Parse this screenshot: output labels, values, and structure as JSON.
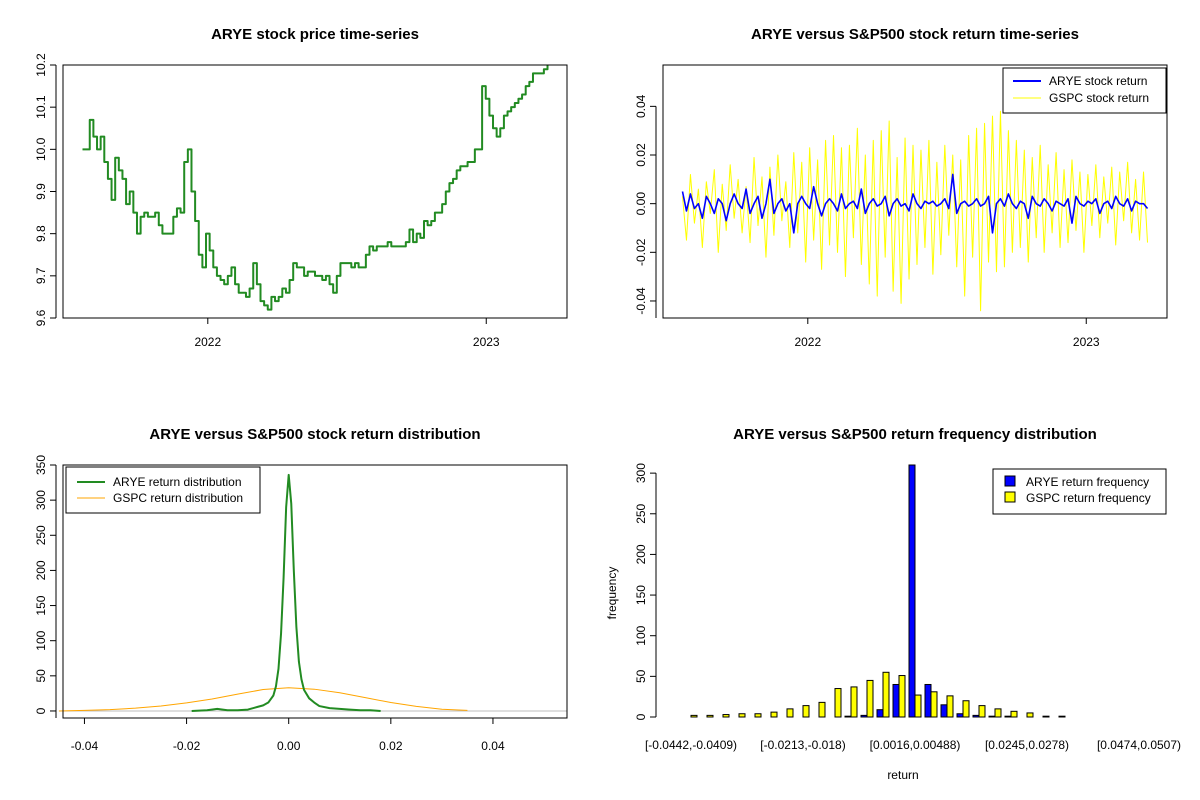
{
  "chart_data": [
    {
      "id": "price",
      "type": "line",
      "title": "ARYE stock price time-series",
      "xlabel": "",
      "ylabel": "",
      "x_domain": [
        2021.55,
        2023.22
      ],
      "xlim": [
        2021.48,
        2023.29
      ],
      "ylim": [
        9.6,
        10.2
      ],
      "x_ticks": [
        {
          "value": 2022,
          "label": "2022"
        },
        {
          "value": 2023,
          "label": "2023"
        }
      ],
      "y_ticks": [
        {
          "value": 9.6,
          "label": "9.6"
        },
        {
          "value": 9.7,
          "label": "9.7"
        },
        {
          "value": 9.8,
          "label": "9.8"
        },
        {
          "value": 9.9,
          "label": "9.9"
        },
        {
          "value": 10.0,
          "label": "10.0"
        },
        {
          "value": 10.1,
          "label": "10.1"
        },
        {
          "value": 10.2,
          "label": "10.2"
        }
      ],
      "series": [
        {
          "name": "ARYE",
          "color": "#228B22",
          "values": [
            10.0,
            10.0,
            10.07,
            10.03,
            10.0,
            10.03,
            9.97,
            9.93,
            9.88,
            9.98,
            9.95,
            9.93,
            9.87,
            9.9,
            9.85,
            9.8,
            9.84,
            9.85,
            9.84,
            9.84,
            9.85,
            9.82,
            9.8,
            9.8,
            9.8,
            9.84,
            9.86,
            9.85,
            9.97,
            10.0,
            9.9,
            9.83,
            9.75,
            9.72,
            9.8,
            9.76,
            9.72,
            9.7,
            9.69,
            9.68,
            9.7,
            9.72,
            9.68,
            9.66,
            9.66,
            9.65,
            9.67,
            9.73,
            9.68,
            9.64,
            9.63,
            9.62,
            9.65,
            9.64,
            9.65,
            9.67,
            9.66,
            9.69,
            9.73,
            9.72,
            9.72,
            9.7,
            9.71,
            9.71,
            9.7,
            9.7,
            9.69,
            9.7,
            9.68,
            9.66,
            9.7,
            9.73,
            9.73,
            9.73,
            9.72,
            9.73,
            9.72,
            9.72,
            9.75,
            9.77,
            9.76,
            9.77,
            9.77,
            9.77,
            9.78,
            9.77,
            9.77,
            9.77,
            9.77,
            9.78,
            9.81,
            9.78,
            9.8,
            9.79,
            9.83,
            9.82,
            9.83,
            9.85,
            9.85,
            9.87,
            9.9,
            9.92,
            9.93,
            9.95,
            9.96,
            9.96,
            9.97,
            9.97,
            10.0,
            10.0,
            10.15,
            10.12,
            10.08,
            10.05,
            10.03,
            10.05,
            10.08,
            10.09,
            10.1,
            10.11,
            10.12,
            10.13,
            10.15,
            10.16,
            10.18,
            10.18,
            10.18,
            10.19,
            10.2
          ]
        }
      ]
    },
    {
      "id": "returns",
      "type": "line",
      "title": "ARYE versus S&P500 stock return time-series",
      "xlabel": "",
      "ylabel": "",
      "x_domain": [
        2021.55,
        2023.22
      ],
      "xlim": [
        2021.48,
        2023.29
      ],
      "ylim": [
        -0.047,
        0.057
      ],
      "x_ticks": [
        {
          "value": 2022,
          "label": "2022"
        },
        {
          "value": 2023,
          "label": "2023"
        }
      ],
      "y_ticks": [
        {
          "value": -0.04,
          "label": "-0.04"
        },
        {
          "value": -0.02,
          "label": "-0.02"
        },
        {
          "value": 0.0,
          "label": "0.00"
        },
        {
          "value": 0.02,
          "label": "0.02"
        },
        {
          "value": 0.04,
          "label": "0.04"
        }
      ],
      "legend_position": "top-right",
      "series": [
        {
          "name": "ARYE stock return",
          "color": "#0000FF",
          "values": [
            0.005,
            -0.003,
            0.004,
            -0.002,
            0.0,
            -0.006,
            0.003,
            0.0,
            -0.004,
            0.002,
            0.0,
            -0.007,
            0.0,
            0.004,
            0.0,
            -0.002,
            0.006,
            -0.004,
            0.0,
            0.003,
            -0.006,
            0.0,
            0.01,
            -0.004,
            0.0,
            0.002,
            -0.003,
            0.0,
            -0.012,
            0.0,
            0.003,
            0.0,
            -0.002,
            0.007,
            0.0,
            -0.005,
            0.0,
            0.002,
            0.0,
            -0.003,
            0.004,
            -0.002,
            0.0,
            0.001,
            -0.002,
            0.006,
            -0.004,
            0.0,
            0.002,
            -0.001,
            0.0,
            0.003,
            -0.005,
            0.0,
            0.002,
            -0.001,
            0.0,
            -0.003,
            0.004,
            0.0,
            -0.002,
            0.001,
            0.0,
            0.001,
            -0.001,
            0.0,
            0.002,
            -0.002,
            0.012,
            -0.004,
            0.0,
            0.001,
            -0.001,
            0.0,
            0.002,
            -0.001,
            0.0,
            0.003,
            -0.012,
            0.0,
            0.002,
            -0.001,
            0.004,
            0.0,
            -0.002,
            0.001,
            0.0,
            -0.006,
            0.003,
            0.0,
            -0.001,
            0.002,
            0.0,
            -0.003,
            0.001,
            0.0,
            -0.001,
            0.002,
            -0.008,
            0.003,
            0.0,
            -0.001,
            0.001,
            0.0,
            0.002,
            -0.004,
            0.0,
            0.001,
            -0.002,
            0.003,
            0.0,
            -0.001,
            0.002,
            -0.003,
            0.001,
            0.0,
            0.0,
            -0.002
          ]
        },
        {
          "name": "GSPC stock return",
          "color": "#FFFF00",
          "values": [
            0.003,
            -0.015,
            0.012,
            -0.008,
            0.006,
            -0.018,
            0.009,
            -0.004,
            0.014,
            -0.02,
            0.008,
            -0.011,
            0.016,
            -0.006,
            0.01,
            -0.012,
            0.007,
            -0.016,
            0.019,
            -0.009,
            0.011,
            -0.022,
            0.015,
            -0.013,
            0.02,
            -0.007,
            0.009,
            -0.018,
            0.021,
            -0.012,
            0.017,
            -0.024,
            0.023,
            -0.015,
            0.018,
            -0.027,
            0.026,
            -0.017,
            0.028,
            -0.02,
            0.023,
            -0.03,
            0.024,
            -0.014,
            0.031,
            -0.025,
            0.02,
            -0.033,
            0.026,
            -0.038,
            0.03,
            -0.022,
            0.034,
            -0.036,
            0.019,
            -0.041,
            0.027,
            -0.031,
            0.024,
            -0.025,
            0.022,
            -0.018,
            0.026,
            -0.029,
            0.017,
            -0.021,
            0.024,
            -0.013,
            0.02,
            -0.026,
            0.018,
            -0.038,
            0.028,
            -0.022,
            0.031,
            -0.044,
            0.033,
            -0.024,
            0.036,
            -0.028,
            0.038,
            -0.026,
            0.03,
            -0.02,
            0.026,
            -0.018,
            0.022,
            -0.024,
            0.019,
            -0.014,
            0.024,
            -0.02,
            0.016,
            -0.012,
            0.021,
            -0.018,
            0.014,
            -0.016,
            0.018,
            -0.011,
            0.013,
            -0.02,
            0.012,
            -0.009,
            0.016,
            -0.014,
            0.011,
            -0.008,
            0.015,
            -0.017,
            0.013,
            -0.007,
            0.017,
            -0.012,
            0.01,
            -0.015,
            0.013,
            -0.016
          ]
        }
      ]
    },
    {
      "id": "density",
      "type": "line",
      "title": "ARYE versus S&P500 stock return distribution",
      "xlabel": "",
      "ylabel": "",
      "xlim": [
        -0.0442,
        0.0545
      ],
      "ylim": [
        -10,
        350
      ],
      "x_ticks": [
        {
          "value": -0.04,
          "label": "-0.04"
        },
        {
          "value": -0.02,
          "label": "-0.02"
        },
        {
          "value": 0.0,
          "label": "0.00"
        },
        {
          "value": 0.02,
          "label": "0.02"
        },
        {
          "value": 0.04,
          "label": "0.04"
        }
      ],
      "y_ticks": [
        {
          "value": 0,
          "label": "0"
        },
        {
          "value": 50,
          "label": "50"
        },
        {
          "value": 100,
          "label": "100"
        },
        {
          "value": 150,
          "label": "150"
        },
        {
          "value": 200,
          "label": "200"
        },
        {
          "value": 250,
          "label": "250"
        },
        {
          "value": 300,
          "label": "300"
        },
        {
          "value": 350,
          "label": "350"
        }
      ],
      "legend_position": "top-left",
      "series": [
        {
          "name": "ARYE return distribution",
          "color": "#228B22",
          "x": [
            -0.019,
            -0.016,
            -0.014,
            -0.012,
            -0.01,
            -0.008,
            -0.006,
            -0.005,
            -0.004,
            -0.003,
            -0.0025,
            -0.002,
            -0.0015,
            -0.001,
            -0.0005,
            0.0,
            0.0005,
            0.001,
            0.0015,
            0.002,
            0.0025,
            0.003,
            0.004,
            0.005,
            0.006,
            0.008,
            0.01,
            0.012,
            0.014,
            0.016,
            0.018
          ],
          "y": [
            0,
            1,
            3,
            1,
            1,
            2,
            6,
            8,
            12,
            22,
            35,
            60,
            110,
            190,
            290,
            336,
            295,
            200,
            120,
            70,
            45,
            30,
            18,
            12,
            7,
            4,
            3,
            2,
            1,
            1,
            0
          ]
        },
        {
          "name": "GSPC return distribution",
          "color": "#FFA500",
          "x": [
            -0.045,
            -0.04,
            -0.035,
            -0.03,
            -0.025,
            -0.02,
            -0.015,
            -0.01,
            -0.005,
            0.0,
            0.005,
            0.01,
            0.015,
            0.02,
            0.025,
            0.03,
            0.035
          ],
          "y": [
            0,
            0.8,
            2,
            4,
            7,
            11.5,
            17,
            24,
            30.5,
            33,
            31,
            26,
            19,
            12,
            6.5,
            2.5,
            0.8
          ]
        }
      ]
    },
    {
      "id": "freq",
      "type": "bar",
      "title": "ARYE versus S&P500 return frequency distribution",
      "xlabel": "return",
      "ylabel": "frequency",
      "ylim": [
        0,
        310
      ],
      "y_ticks": [
        {
          "value": 0,
          "label": "0"
        },
        {
          "value": 50,
          "label": "50"
        },
        {
          "value": 100,
          "label": "100"
        },
        {
          "value": 150,
          "label": "150"
        },
        {
          "value": 200,
          "label": "200"
        },
        {
          "value": 250,
          "label": "250"
        },
        {
          "value": 300,
          "label": "300"
        }
      ],
      "x_tick_labels": [
        {
          "index": 0,
          "label": "[-0.0442,-0.0409)"
        },
        {
          "index": 7,
          "label": "[-0.0213,-0.018)"
        },
        {
          "index": 14,
          "label": "[0.0016,0.00488)"
        },
        {
          "index": 21,
          "label": "[0.0245,0.0278)"
        },
        {
          "index": 28,
          "label": "[0.0474,0.0507)"
        }
      ],
      "legend_position": "top-right",
      "bin_count": 29,
      "series": [
        {
          "name": "ARYE return frequency",
          "color": "#0000FF",
          "values": [
            0,
            0,
            0,
            0,
            0,
            0,
            0,
            0,
            0,
            0,
            1,
            2,
            9,
            40,
            310,
            40,
            15,
            4,
            2,
            1,
            1,
            0,
            0,
            0,
            0,
            0,
            0,
            0,
            0
          ]
        },
        {
          "name": "GSPC return frequency",
          "color": "#FFFF00",
          "values": [
            2,
            2,
            3,
            4,
            4,
            6,
            10,
            14,
            18,
            35,
            37,
            45,
            55,
            51,
            27,
            31,
            26,
            20,
            14,
            10,
            7,
            5,
            1,
            1,
            0,
            0,
            0,
            0,
            0
          ]
        }
      ]
    }
  ]
}
